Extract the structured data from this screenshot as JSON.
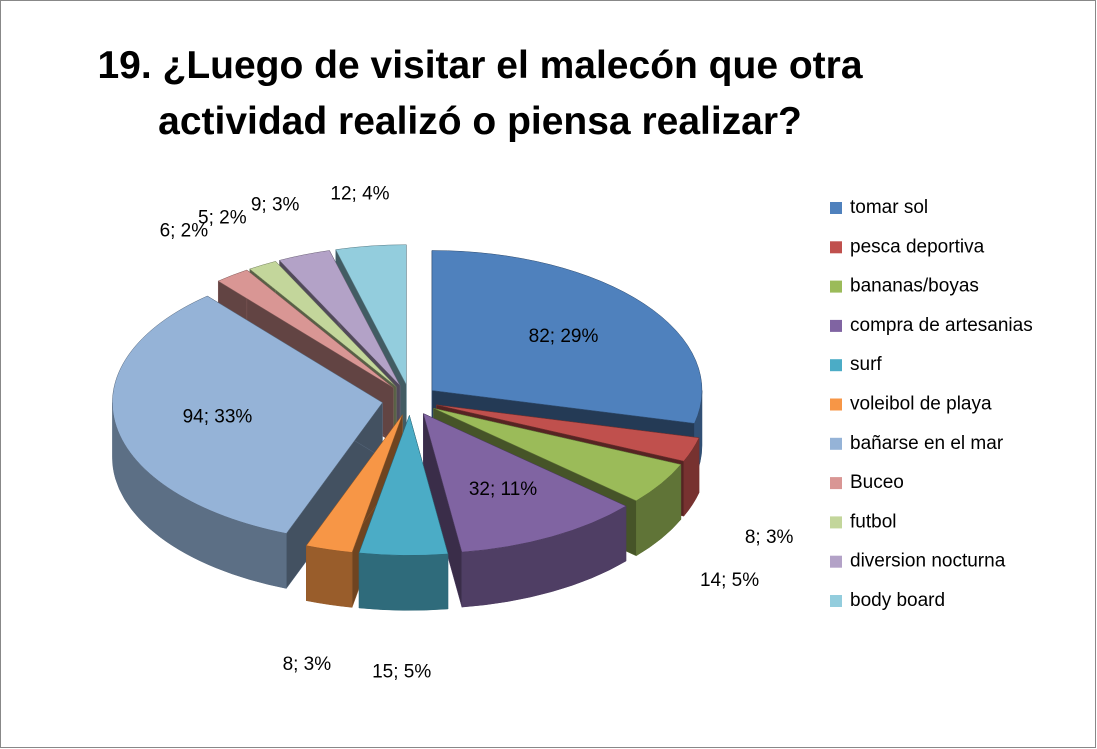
{
  "chart_data": {
    "type": "pie3d",
    "title": "19.  ¿Luego de visitar el malecón que otra\nactividad realizó o piensa realizar?",
    "categories": [
      "tomar sol",
      "pesca deportiva",
      "bananas/boyas",
      "compra de artesanias",
      "surf",
      "voleibol de playa",
      "bañarse en el mar",
      "Buceo",
      "futbol",
      "diversion nocturna",
      "body board"
    ],
    "values": [
      82,
      8,
      14,
      32,
      15,
      8,
      94,
      6,
      5,
      9,
      12
    ],
    "value_labels": [
      "82; 29%",
      "8; 3%",
      "14; 5%",
      "32; 11%",
      "15; 5%",
      "8; 3%",
      "94; 33%",
      "6; 2%",
      "5; 2%",
      "9; 3%",
      "12; 4%"
    ],
    "colors": [
      "#4f81bd",
      "#c0504d",
      "#9bbb59",
      "#8064a2",
      "#4bacc6",
      "#f79646",
      "#95b3d7",
      "#d99694",
      "#c3d69b",
      "#b3a2c7",
      "#93cddd"
    ],
    "legend": "right"
  }
}
